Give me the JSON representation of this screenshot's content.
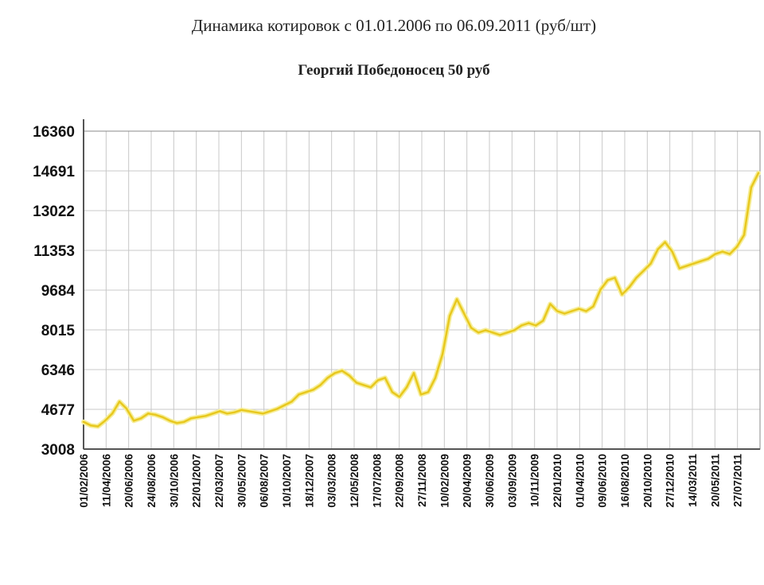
{
  "chart_data": {
    "type": "line",
    "title": "Динамика котировок с 01.01.2006 по 06.09.2011 (руб/шт)",
    "subtitle": "Георгий Победоносец 50 руб",
    "xlabel": "",
    "ylabel": "",
    "ylim": [
      3008,
      16360
    ],
    "y_ticks": [
      "16360",
      "14691",
      "13022",
      "11353",
      "9684",
      "8015",
      "6346",
      "4677",
      "3008"
    ],
    "x_ticks": [
      "01/02/2006",
      "11/04/2006",
      "20/06/2006",
      "24/08/2006",
      "30/10/2006",
      "22/01/2007",
      "22/03/2007",
      "30/05/2007",
      "06/08/2007",
      "10/10/2007",
      "18/12/2007",
      "03/03/2008",
      "12/05/2008",
      "17/07/2008",
      "22/09/2008",
      "27/11/2008",
      "10/02/2009",
      "20/04/2009",
      "30/06/2009",
      "03/09/2009",
      "10/11/2009",
      "22/01/2010",
      "01/04/2010",
      "09/06/2010",
      "16/08/2010",
      "20/10/2010",
      "27/12/2010",
      "14/03/2011",
      "20/05/2011",
      "27/07/2011"
    ],
    "grid": true,
    "line_color": "#e8c81e",
    "series": [
      {
        "values": [
          4150,
          4000,
          3960,
          4200,
          4500,
          5000,
          4700,
          4200,
          4300,
          4500,
          4450,
          4350,
          4200,
          4100,
          4150,
          4300,
          4350,
          4400,
          4500,
          4600,
          4500,
          4550,
          4650,
          4600,
          4550,
          4500,
          4600,
          4700,
          4850,
          5000,
          5300,
          5400,
          5500,
          5700,
          6000,
          6200,
          6300,
          6100,
          5800,
          5700,
          5600,
          5900,
          6000,
          5400,
          5200,
          5600,
          6200,
          5300,
          5400,
          6000,
          7000,
          8600,
          9300,
          8700,
          8100,
          7900,
          8000,
          7900,
          7800,
          7900,
          8000,
          8200,
          8300,
          8200,
          8400,
          9100,
          8800,
          8700,
          8800,
          8900,
          8800,
          9000,
          9700,
          10100,
          10200,
          9500,
          9800,
          10200,
          10500,
          10800,
          11400,
          11700,
          11300,
          10600,
          10700,
          10800,
          10900,
          11000,
          11200,
          11300,
          11200,
          11500,
          12000,
          14000,
          14600
        ]
      }
    ]
  }
}
